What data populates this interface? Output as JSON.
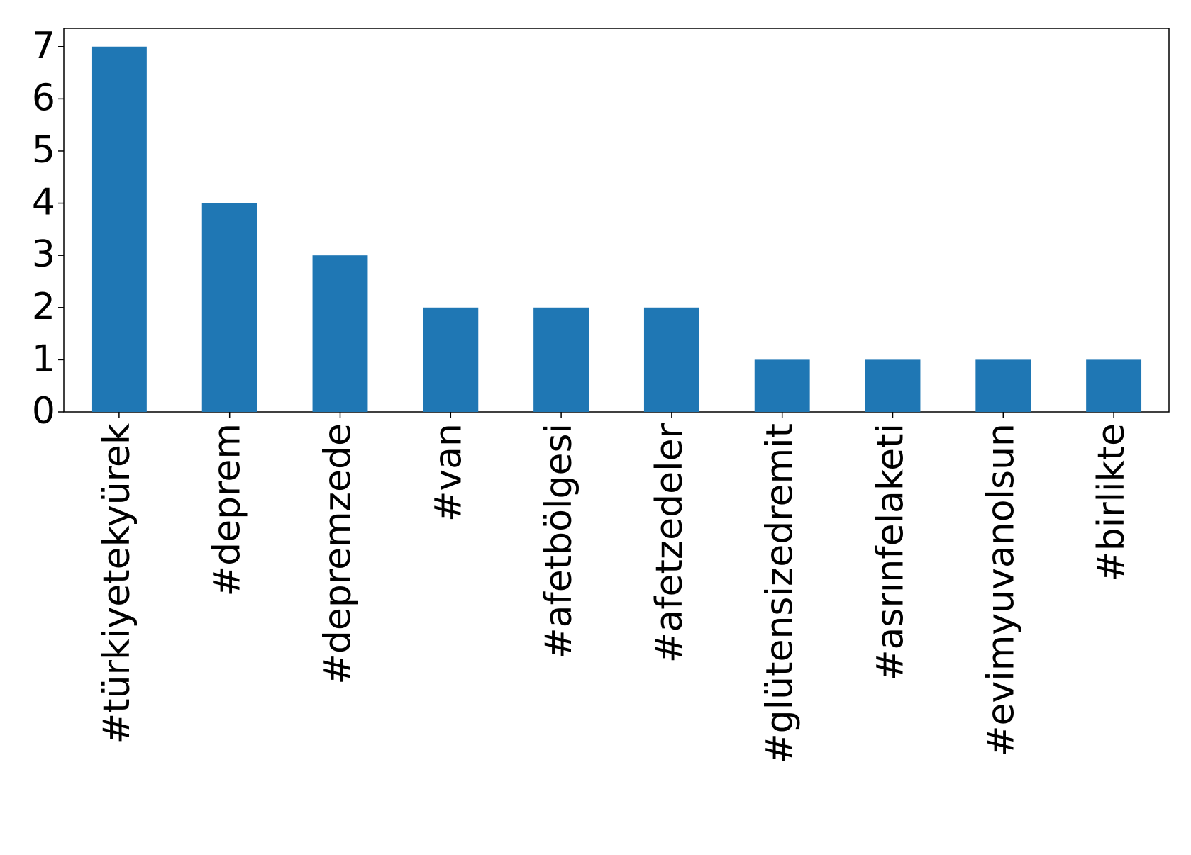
{
  "chart_data": {
    "type": "bar",
    "categories": [
      "#türkiyetekyürek",
      "#deprem",
      "#depremzede",
      "#van",
      "#afetbölgesi",
      "#afetzedeler",
      "#glütensizedremit",
      "#asrınfelaketi",
      "#evimyuvanolsun",
      "#birlikte"
    ],
    "values": [
      7,
      4,
      3,
      2,
      2,
      2,
      1,
      1,
      1,
      1
    ],
    "color": "#1f77b4",
    "ylim": [
      0,
      7.35
    ],
    "yticks": [
      0,
      1,
      2,
      3,
      4,
      5,
      6,
      7
    ],
    "grid": false
  }
}
